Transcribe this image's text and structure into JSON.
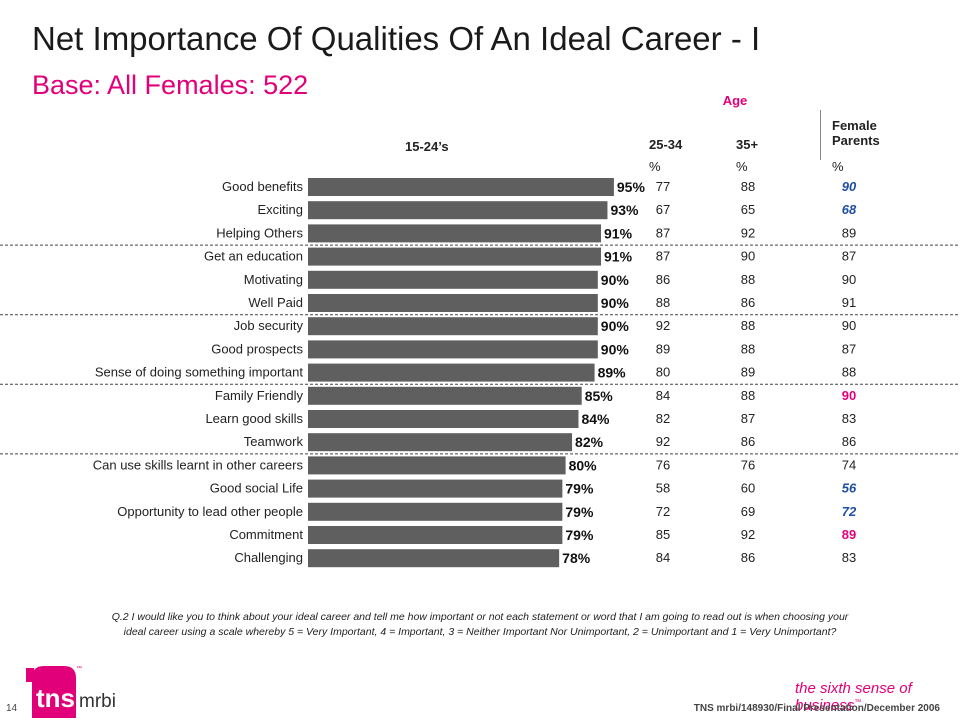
{
  "header": {
    "title": "Net Importance Of Qualities Of An Ideal Career - I",
    "subtitle": "Base:  All Females:  522"
  },
  "columns": {
    "age_label": "Age",
    "group_1524": "15-24’s",
    "group_2534": "25-34",
    "group_35": "35+",
    "group_fp": "Female Parents",
    "pct_sign": "%"
  },
  "chart_data": {
    "type": "bar",
    "orientation": "horizontal",
    "title": "",
    "categories": [
      "Good benefits",
      "Exciting",
      "Helping Others",
      "Get an education",
      "Motivating",
      "Well Paid",
      "Job security",
      "Good prospects",
      "Sense of doing something important",
      "Family Friendly",
      "Learn good skills",
      "Teamwork",
      "Can use skills learnt in other careers",
      "Good social Life",
      "Opportunity to lead other people",
      "Commitment",
      "Challenging"
    ],
    "series": [
      {
        "name": "15-24’s",
        "values": [
          95,
          93,
          91,
          91,
          90,
          90,
          90,
          90,
          89,
          85,
          84,
          82,
          80,
          79,
          79,
          79,
          78
        ],
        "value_labels": [
          "95%",
          "93%",
          "91%",
          "91%",
          "90%",
          "90%",
          "90%",
          "90%",
          "89%",
          "85%",
          "84%",
          "82%",
          "80%",
          "79%",
          "79%",
          "79%",
          "78%"
        ]
      },
      {
        "name": "25-34",
        "values": [
          77,
          67,
          87,
          87,
          86,
          88,
          92,
          89,
          80,
          84,
          82,
          92,
          76,
          58,
          72,
          85,
          84
        ]
      },
      {
        "name": "35+",
        "values": [
          88,
          65,
          92,
          90,
          88,
          86,
          88,
          88,
          89,
          88,
          87,
          86,
          76,
          60,
          69,
          92,
          86
        ]
      },
      {
        "name": "Female Parents",
        "values": [
          90,
          68,
          89,
          87,
          90,
          91,
          90,
          87,
          88,
          90,
          83,
          86,
          74,
          56,
          72,
          89,
          83
        ]
      }
    ],
    "female_parents_highlight": [
      "blue",
      "blue",
      "none",
      "none",
      "none",
      "none",
      "none",
      "none",
      "none",
      "pink",
      "none",
      "none",
      "none",
      "blue",
      "blue",
      "pink",
      "none"
    ],
    "group_separators_after": [
      "Helping Others",
      "Well Paid",
      "Sense of doing something important",
      "Teamwork"
    ],
    "xlim": [
      0,
      100
    ],
    "colors": {
      "bar": "#5f5f5f",
      "blue": "#1f4ea3",
      "pink": "#e2007a"
    }
  },
  "footnote": "Q.2  I would like you to think about your ideal career and tell me how important or not each statement or word that I am going to read out is when choosing your ideal career using a scale whereby 5 = Very Important, 4 = Important, 3 = Neither Important Nor Unimportant, 2 = Unimportant and 1 = Very Unimportant?",
  "footer": {
    "page_number": "14",
    "reference": "TNS mrbi/148930/Final Presentation/December 2006",
    "tagline": "the sixth sense of business",
    "tagline_tm": "™",
    "logo_text": "tns",
    "logo_sub": "mrbi",
    "logo_tm": "™"
  }
}
